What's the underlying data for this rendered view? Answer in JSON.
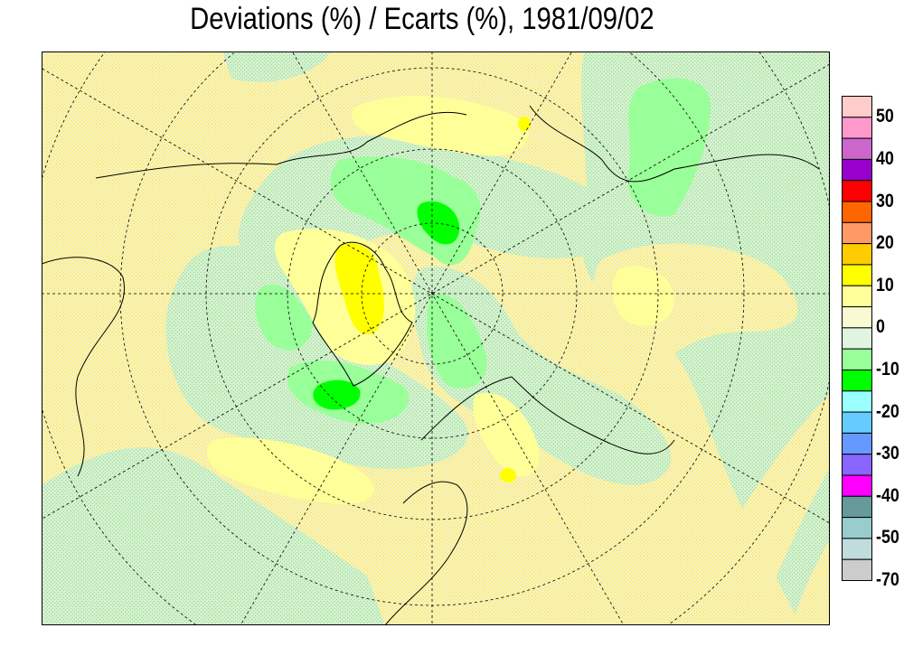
{
  "title": "Deviations (%) / Ecarts (%), 1981/09/02",
  "legend": {
    "colors": [
      "#ffcccc",
      "#ff99cc",
      "#cc66cc",
      "#9900cc",
      "#ff0000",
      "#ff6600",
      "#ff9966",
      "#ffcc00",
      "#ffff00",
      "#ffff99",
      "#fafad2",
      "#e0f5e0",
      "#99ff99",
      "#00ff00",
      "#99ffff",
      "#66ccff",
      "#6699ff",
      "#8866ff",
      "#ff00ff",
      "#669999",
      "#99cccc",
      "#c0dcdc",
      "#cccccc"
    ],
    "labels": [
      "50",
      "40",
      "30",
      "20",
      "10",
      "0",
      "-10",
      "-20",
      "-30",
      "-40",
      "-50",
      "-70"
    ]
  },
  "map": {
    "projection": "polar stereographic, north pole",
    "fill_colors": {
      "yellow_dotted": "#f5eea0",
      "green_dotted": "#cdf3c0",
      "light_green": "#99ff99",
      "green": "#00ff00",
      "pale_yellow": "#ffff99",
      "yellow": "#ffff00"
    }
  }
}
